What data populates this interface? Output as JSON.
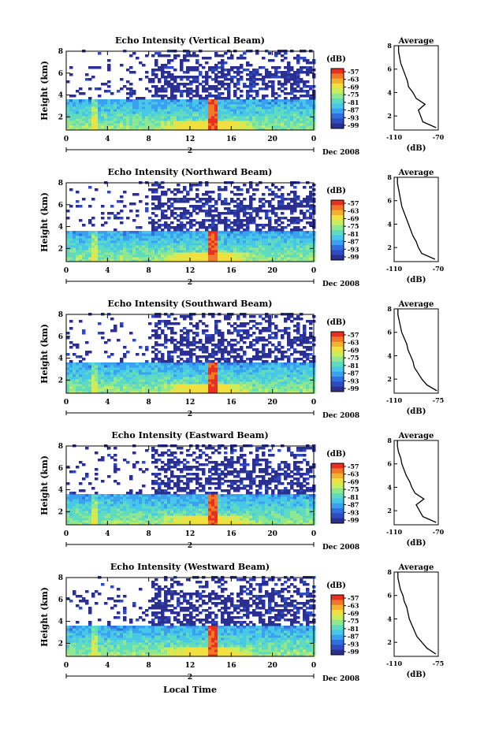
{
  "colors": {
    "scale": [
      "#2b2f8f",
      "#2f4bc0",
      "#2f6fe0",
      "#3aa0f0",
      "#48c8e8",
      "#5fdcc0",
      "#8fe890",
      "#c8ee60",
      "#f0e040",
      "#f5b030",
      "#f07828",
      "#e83020"
    ],
    "noise": "#3a3f98"
  },
  "colorbar": {
    "unit": "(dB)",
    "ticks": [
      "-57",
      "-63",
      "-69",
      "-75",
      "-81",
      "-87",
      "-93",
      "-99"
    ]
  },
  "x_ticks": [
    "0",
    "4",
    "8",
    "12",
    "16",
    "20",
    "0"
  ],
  "date_label": "Dec 2008",
  "day_label": "2",
  "ylabel": "Height (km)",
  "y_ticks": [
    "2",
    "4",
    "6",
    "8"
  ],
  "xlabel_bottom": "Local Time",
  "avg_title": "Average",
  "avg_xlabel": "(dB)",
  "chart_data": [
    {
      "type": "heatmap",
      "title": "Echo Intensity (Vertical Beam)",
      "xlabel": "",
      "ylabel": "Height (km)",
      "xlim": [
        0,
        24
      ],
      "ylim": [
        0.8,
        8
      ],
      "colorbar_range_dB": [
        -99,
        -57
      ],
      "features": {
        "strong_echo_hours": [
          13.5,
          14.5
        ],
        "cloud_top_km": 3.5
      },
      "average_profile": {
        "xlim": [
          -110,
          -70
        ],
        "xticks": [
          "-110",
          "-70"
        ],
        "height_km": [
          1,
          1.5,
          2,
          2.5,
          3,
          3.5,
          4,
          4.5,
          5,
          5.5,
          6,
          6.5,
          7,
          7.5,
          8
        ],
        "dB": [
          -72,
          -84,
          -86,
          -88,
          -82,
          -90,
          -93,
          -97,
          -98,
          -100,
          -102,
          -104,
          -105,
          -106,
          -106
        ]
      }
    },
    {
      "type": "heatmap",
      "title": "Echo Intensity (Northward Beam)",
      "xlabel": "",
      "ylabel": "Height (km)",
      "xlim": [
        0,
        24
      ],
      "ylim": [
        0.8,
        8
      ],
      "colorbar_range_dB": [
        -99,
        -57
      ],
      "features": {
        "strong_echo_hours": [
          13.5,
          14.5
        ],
        "cloud_top_km": 3.5
      },
      "average_profile": {
        "xlim": [
          -110,
          -70
        ],
        "xticks": [
          "-110",
          "-70"
        ],
        "height_km": [
          1,
          1.5,
          2,
          2.5,
          3,
          3.5,
          4,
          4.5,
          5,
          5.5,
          6,
          6.5,
          7,
          7.5,
          8
        ],
        "dB": [
          -73,
          -85,
          -88,
          -90,
          -93,
          -95,
          -97,
          -99,
          -101,
          -103,
          -104,
          -105,
          -106,
          -107,
          -107
        ]
      }
    },
    {
      "type": "heatmap",
      "title": "Echo Intensity (Southward Beam)",
      "xlabel": "",
      "ylabel": "Height (km)",
      "xlim": [
        0,
        24
      ],
      "ylim": [
        0.8,
        8
      ],
      "colorbar_range_dB": [
        -99,
        -57
      ],
      "features": {
        "strong_echo_hours": [
          13.5,
          14.5
        ],
        "cloud_top_km": 3.5
      },
      "average_profile": {
        "xlim": [
          -110,
          -75
        ],
        "xticks": [
          "-110",
          "-75"
        ],
        "height_km": [
          1,
          1.5,
          2,
          2.5,
          3,
          3.5,
          4,
          4.5,
          5,
          5.5,
          6,
          6.5,
          7,
          7.5,
          8
        ],
        "dB": [
          -76,
          -84,
          -88,
          -91,
          -94,
          -95,
          -97,
          -99,
          -100,
          -102,
          -104,
          -105,
          -106,
          -107,
          -107
        ]
      }
    },
    {
      "type": "heatmap",
      "title": "Echo Intensity (Eastward Beam)",
      "xlabel": "",
      "ylabel": "Height (km)",
      "xlim": [
        0,
        24
      ],
      "ylim": [
        0.8,
        8
      ],
      "colorbar_range_dB": [
        -99,
        -57
      ],
      "features": {
        "strong_echo_hours": [
          13.5,
          14.5
        ],
        "cloud_top_km": 3.5
      },
      "average_profile": {
        "xlim": [
          -110,
          -70
        ],
        "xticks": [
          "-110",
          "-70"
        ],
        "height_km": [
          1,
          1.5,
          2,
          2.5,
          3,
          3.5,
          4,
          4.5,
          5,
          5.5,
          6,
          6.5,
          7,
          7.5,
          8
        ],
        "dB": [
          -72,
          -84,
          -87,
          -90,
          -83,
          -91,
          -94,
          -96,
          -99,
          -101,
          -103,
          -104,
          -106,
          -107,
          -107
        ]
      }
    },
    {
      "type": "heatmap",
      "title": "Echo Intensity (Westward Beam)",
      "xlabel": "Local Time",
      "ylabel": "Height (km)",
      "xlim": [
        0,
        24
      ],
      "ylim": [
        0.8,
        8
      ],
      "colorbar_range_dB": [
        -99,
        -57
      ],
      "features": {
        "strong_echo_hours": [
          13.5,
          14.5
        ],
        "cloud_top_km": 3.5
      },
      "average_profile": {
        "xlim": [
          -110,
          -75
        ],
        "xticks": [
          "-110",
          "-75"
        ],
        "height_km": [
          1,
          1.5,
          2,
          2.5,
          3,
          3.5,
          4,
          4.5,
          5,
          5.5,
          6,
          6.5,
          7,
          7.5,
          8
        ],
        "dB": [
          -77,
          -84,
          -88,
          -92,
          -94,
          -96,
          -98,
          -99,
          -100,
          -102,
          -103,
          -105,
          -106,
          -107,
          -107
        ]
      }
    }
  ]
}
